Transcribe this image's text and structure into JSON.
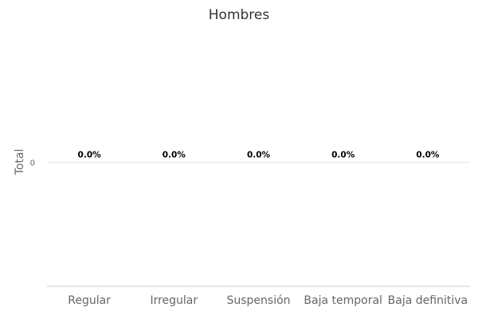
{
  "chart_data": {
    "type": "bar",
    "title": "Hombres",
    "xlabel": "",
    "ylabel": "Total",
    "categories": [
      "Regular",
      "Irregular",
      "Suspensión",
      "Baja temporal",
      "Baja definitiva"
    ],
    "series": [
      {
        "values": [
          0,
          0,
          0,
          0,
          0
        ]
      }
    ],
    "data_labels": [
      "0.0%",
      "0.0%",
      "0.0%",
      "0.0%",
      "0.0%"
    ],
    "yticks": [
      0
    ],
    "ylim": [
      -1,
      1
    ],
    "grid": true,
    "legend": "none",
    "colors": {
      "bar": "#4c72b0",
      "grid": "#e6e6e6",
      "axis": "#cccccc",
      "text": "#666666"
    }
  }
}
